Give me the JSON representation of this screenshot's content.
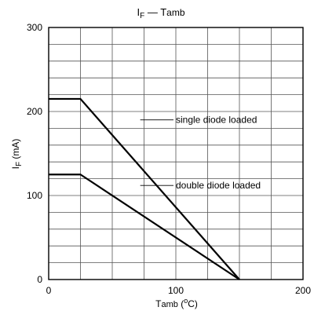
{
  "chart_data": {
    "type": "line",
    "title": {
      "main": "I",
      "main_sub": "F",
      "sep": "—",
      "ref": "T",
      "ref_sub": "amb"
    },
    "xlabel": {
      "main": "T",
      "main_sub": "amb",
      "unit_open": "(",
      "unit_sup": "o",
      "unit_rest": "C)"
    },
    "ylabel": {
      "main": "I",
      "main_sub": "F",
      "unit": "(mA)"
    },
    "xlim": [
      0,
      200
    ],
    "ylim": [
      0,
      300
    ],
    "x_ticks": [
      "0",
      "100",
      "200"
    ],
    "y_ticks": [
      "0",
      "100",
      "200",
      "300"
    ],
    "x_tick_values": [
      0,
      100,
      200
    ],
    "y_tick_values": [
      0,
      100,
      200,
      300
    ],
    "grid": {
      "x_step": 25,
      "y_step": 20,
      "on": true
    },
    "series": [
      {
        "name": "single diode loaded",
        "x": [
          0,
          25,
          150
        ],
        "y": [
          215,
          215,
          0
        ]
      },
      {
        "name": "double diode loaded",
        "x": [
          0,
          25,
          150
        ],
        "y": [
          125,
          125,
          0
        ]
      }
    ],
    "annotations": [
      {
        "text": "single diode loaded",
        "at_x": 72,
        "at_y": 190,
        "text_x": 100,
        "text_y": 190
      },
      {
        "text": "double diode loaded",
        "at_x": 72,
        "at_y": 112,
        "text_x": 100,
        "text_y": 112
      }
    ]
  }
}
